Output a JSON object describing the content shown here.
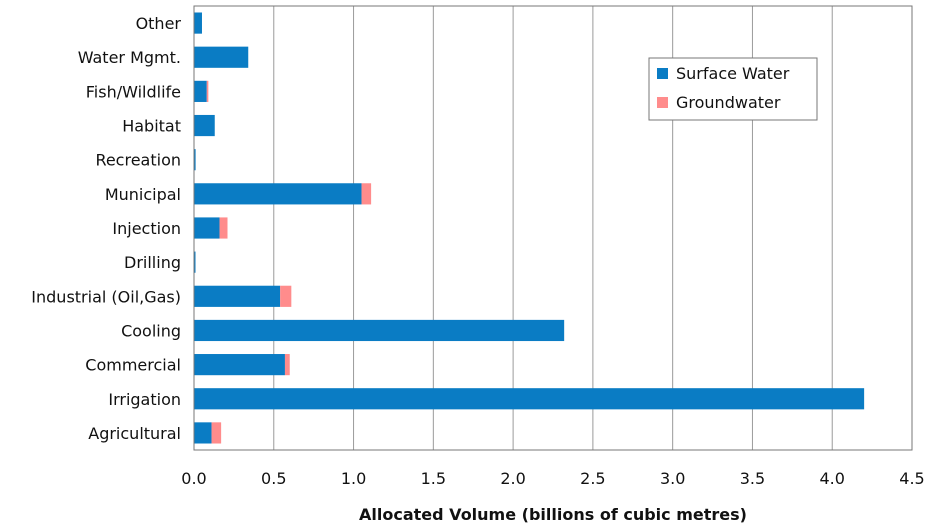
{
  "chart_data": {
    "type": "bar",
    "orientation": "horizontal",
    "stacked": true,
    "categories": [
      "Agricultural",
      "Irrigation",
      "Commercial",
      "Cooling",
      "Industrial (Oil,Gas)",
      "Drilling",
      "Injection",
      "Municipal",
      "Recreation",
      "Habitat",
      "Fish/Wildlife",
      "Water Mgmt.",
      "Other"
    ],
    "series": [
      {
        "name": "Surface Water",
        "color": "#0a7cc4",
        "values": [
          0.11,
          4.2,
          0.57,
          2.32,
          0.54,
          0.005,
          0.16,
          1.05,
          0.01,
          0.13,
          0.08,
          0.34,
          0.05
        ]
      },
      {
        "name": "Groundwater",
        "color": "#ff8c8c",
        "values": [
          0.06,
          0.0,
          0.03,
          0.0,
          0.07,
          0.0,
          0.05,
          0.06,
          0.0,
          0.0,
          0.01,
          0.0,
          0.0
        ]
      }
    ],
    "xlim": [
      0,
      4.5
    ],
    "xticks": [
      "0.0",
      "0.5",
      "1.0",
      "1.5",
      "2.0",
      "2.5",
      "3.0",
      "3.5",
      "4.0",
      "4.5"
    ],
    "xlabel": "Allocated Volume  (billions of cubic metres)",
    "ylabel": "",
    "title": "",
    "grid": "vertical",
    "legend_position": "top-right"
  }
}
